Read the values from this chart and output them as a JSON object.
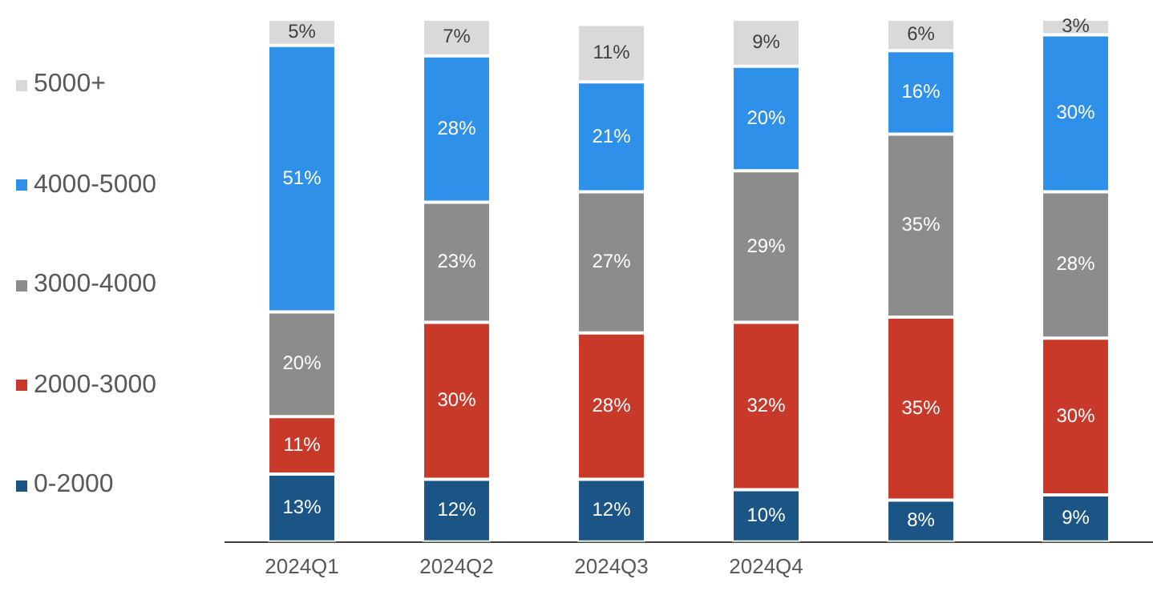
{
  "chart_data": {
    "type": "bar",
    "stacked": true,
    "legend": "left",
    "grid": false,
    "categories": [
      "2024Q1",
      "2024Q2",
      "2024Q3",
      "2024Q4",
      null,
      null
    ],
    "series": [
      {
        "name": "0-2000",
        "color": "#1a5585",
        "values": [
          13,
          12,
          12,
          10,
          8,
          9
        ],
        "value_labels": [
          "13%",
          "12%",
          "12%",
          "10%",
          "8%",
          "9%"
        ]
      },
      {
        "name": "2000-3000",
        "color": "#c9392a",
        "values": [
          11,
          30,
          28,
          32,
          35,
          30
        ],
        "value_labels": [
          "11%",
          "30%",
          "28%",
          "32%",
          "35%",
          "30%"
        ]
      },
      {
        "name": "3000-4000",
        "color": "#8c8c8c",
        "values": [
          20,
          23,
          27,
          29,
          35,
          28
        ],
        "value_labels": [
          "20%",
          "23%",
          "27%",
          "29%",
          "35%",
          "28%"
        ]
      },
      {
        "name": "4000-5000",
        "color": "#2e90e8",
        "values": [
          51,
          28,
          21,
          20,
          16,
          30
        ],
        "value_labels": [
          "51%",
          "28%",
          "21%",
          "20%",
          "16%",
          "30%"
        ]
      },
      {
        "name": "5000+",
        "color": "#d9d9d9",
        "values": [
          5,
          7,
          11,
          9,
          6,
          3
        ],
        "value_labels": [
          "5%",
          "7%",
          "11%",
          "9%",
          "6%",
          "3%"
        ]
      }
    ]
  }
}
